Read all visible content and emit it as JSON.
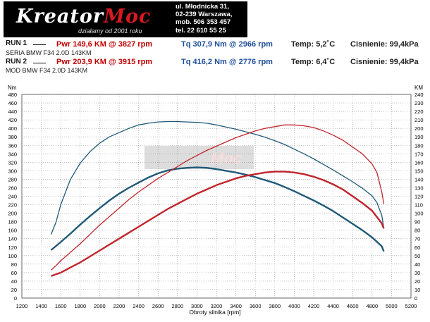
{
  "header": {
    "brand_prefix": "Kreator",
    "brand_accent": "Moc",
    "tagline": "działamy od 2001 roku",
    "address_lines": [
      "ul. Młodnicka 31,",
      "02-239  Warszawa,",
      "mob.  506 353 457",
      "tel.  22 610 55 25"
    ]
  },
  "runs": [
    {
      "label": "RUN 1",
      "pwr": "Pwr  149,6 KM @ 3827 rpm",
      "tq": "Tq 307,9 Nm @ 2966 rpm",
      "temp": "Temp: 5,2˚C",
      "pressure": "Cisnienie: 99,4kPa",
      "vehicle": "SERIA BMW F34 2.0D 143KM"
    },
    {
      "label": "RUN 2",
      "pwr": "Pwr  203,9 KM @ 3915 rpm",
      "tq": "Tq 416,2 Nm @ 2776 rpm",
      "temp": "Temp: 6,4˚C",
      "pressure": "Cisnienie: 99,4kPa",
      "vehicle": "MOD BMW F34 2.0D 143KM"
    }
  ],
  "colors": {
    "torque": "#1f5a78",
    "power": "#c0262c",
    "grid": "#9a9a9a"
  },
  "chart_data": {
    "type": "line",
    "xlabel": "Obroty silnika [rpm]",
    "ylabel_left": "Nm",
    "ylabel_right": "KM",
    "xlim": [
      1200,
      5200
    ],
    "ylim_left": [
      0,
      480
    ],
    "ylim_right": [
      0,
      240
    ],
    "x_ticks": [
      1200,
      1400,
      1600,
      1800,
      2000,
      2200,
      2400,
      2600,
      2800,
      3000,
      3200,
      3400,
      3600,
      3800,
      4000,
      4200,
      4400,
      4600,
      4800,
      5000,
      5200
    ],
    "y_ticks_left": [
      0,
      20,
      40,
      60,
      80,
      100,
      120,
      140,
      160,
      180,
      200,
      220,
      240,
      260,
      280,
      300,
      320,
      340,
      360,
      380,
      400,
      420,
      440,
      460,
      480
    ],
    "y_ticks_right": [
      0,
      10,
      20,
      30,
      40,
      50,
      60,
      70,
      80,
      90,
      100,
      110,
      120,
      130,
      140,
      150,
      160,
      170,
      180,
      190,
      200,
      210,
      220,
      230,
      240
    ],
    "grid": true,
    "series": [
      {
        "run": "RUN 2",
        "quantity": "torque",
        "axis": "left",
        "color": "#1f5a78",
        "x": [
          1500,
          1550,
          1600,
          1700,
          1800,
          1900,
          2000,
          2100,
          2200,
          2300,
          2400,
          2500,
          2600,
          2700,
          2800,
          2900,
          3000,
          3100,
          3200,
          3300,
          3400,
          3500,
          3600,
          3700,
          3800,
          3900,
          4000,
          4100,
          4200,
          4300,
          4400,
          4500,
          4600,
          4700,
          4800,
          4850,
          4900,
          4920
        ],
        "y": [
          150,
          178,
          220,
          280,
          318,
          345,
          365,
          380,
          390,
          400,
          408,
          412,
          415,
          416,
          416,
          415,
          414,
          412,
          408,
          403,
          398,
          392,
          386,
          379,
          371,
          362,
          351,
          340,
          328,
          315,
          302,
          288,
          274,
          259,
          241,
          225,
          195,
          165
        ]
      },
      {
        "run": "RUN 1",
        "quantity": "torque",
        "axis": "left",
        "color": "#1f5a78",
        "x": [
          1500,
          1600,
          1700,
          1800,
          1900,
          2000,
          2100,
          2200,
          2300,
          2400,
          2500,
          2600,
          2700,
          2800,
          2900,
          3000,
          3100,
          3200,
          3300,
          3400,
          3500,
          3600,
          3700,
          3800,
          3900,
          4000,
          4100,
          4200,
          4300,
          4400,
          4500,
          4600,
          4700,
          4800,
          4900,
          4920
        ],
        "y": [
          113,
          132,
          152,
          173,
          193,
          212,
          230,
          246,
          260,
          272,
          284,
          294,
          301,
          305,
          307,
          308,
          307,
          304,
          300,
          296,
          291,
          285,
          278,
          271,
          262,
          252,
          241,
          230,
          218,
          205,
          190,
          175,
          160,
          143,
          122,
          110
        ]
      },
      {
        "run": "RUN 2",
        "quantity": "power",
        "axis": "right",
        "color": "#c0262c",
        "x": [
          1500,
          1550,
          1600,
          1700,
          1800,
          1900,
          2000,
          2100,
          2200,
          2300,
          2400,
          2500,
          2600,
          2700,
          2800,
          2900,
          3000,
          3100,
          3200,
          3300,
          3400,
          3500,
          3600,
          3700,
          3800,
          3900,
          4000,
          4100,
          4200,
          4300,
          4400,
          4500,
          4600,
          4700,
          4800,
          4850,
          4900,
          4920
        ],
        "y": [
          33,
          38,
          44,
          54,
          64,
          75,
          86,
          96,
          106,
          116,
          125,
          133,
          141,
          148,
          155,
          162,
          168,
          174,
          179,
          184,
          189,
          193,
          197,
          200,
          202,
          204,
          204,
          203,
          201,
          197,
          192,
          186,
          178,
          170,
          158,
          148,
          125,
          111
        ]
      },
      {
        "run": "RUN 1",
        "quantity": "power",
        "axis": "right",
        "color": "#c0262c",
        "x": [
          1500,
          1600,
          1700,
          1800,
          1900,
          2000,
          2100,
          2200,
          2300,
          2400,
          2500,
          2600,
          2700,
          2800,
          2900,
          3000,
          3100,
          3200,
          3300,
          3400,
          3500,
          3600,
          3700,
          3800,
          3900,
          4000,
          4100,
          4200,
          4300,
          4400,
          4500,
          4600,
          4700,
          4800,
          4900,
          4920
        ],
        "y": [
          26,
          30,
          36,
          42,
          49,
          56,
          63,
          70,
          77,
          84,
          91,
          98,
          105,
          111,
          117,
          123,
          128,
          133,
          137,
          141,
          144,
          146,
          148,
          149,
          149,
          148,
          146,
          143,
          139,
          134,
          128,
          120,
          112,
          103,
          88,
          82
        ]
      }
    ]
  }
}
